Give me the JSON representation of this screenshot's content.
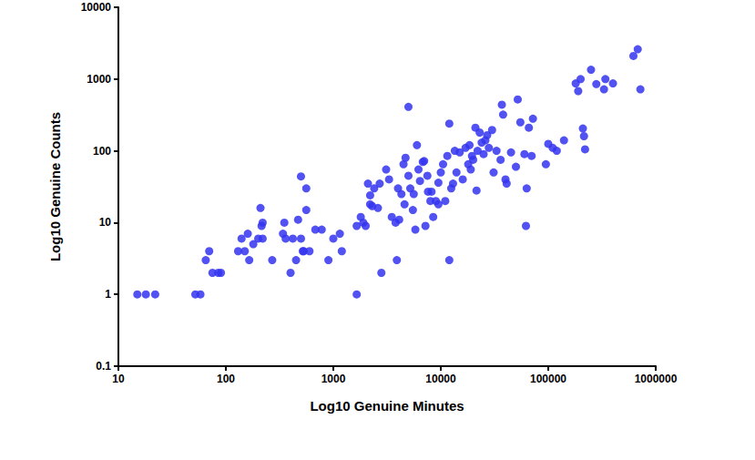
{
  "chart_data": {
    "type": "scatter",
    "x_label": "Log10 Genuine Minutes",
    "y_label": "Log10 Genuine Counts",
    "x": [
      15,
      18,
      22,
      52,
      58,
      65,
      70,
      75,
      85,
      90,
      130,
      140,
      150,
      160,
      165,
      180,
      200,
      210,
      215,
      220,
      220,
      270,
      340,
      350,
      360,
      400,
      420,
      450,
      470,
      500,
      500,
      520,
      530,
      560,
      560,
      600,
      680,
      780,
      900,
      1000,
      1150,
      1200,
      1650,
      1650,
      1800,
      1900,
      2000,
      2100,
      2200,
      2200,
      2300,
      2400,
      2600,
      2700,
      2800,
      3100,
      3300,
      3500,
      3800,
      3900,
      4000,
      4100,
      4300,
      4500,
      4600,
      4700,
      5000,
      5000,
      5200,
      5500,
      5600,
      5800,
      6000,
      6200,
      6400,
      6800,
      7000,
      7200,
      7500,
      7600,
      8000,
      8200,
      8500,
      9000,
      9500,
      9500,
      10000,
      10500,
      11000,
      11500,
      12000,
      12000,
      12500,
      13000,
      13500,
      14000,
      15000,
      16000,
      17000,
      18000,
      18500,
      19000,
      19500,
      20000,
      21000,
      21500,
      22000,
      23000,
      24000,
      25000,
      26000,
      27000,
      28000,
      30000,
      31000,
      33000,
      36000,
      37000,
      38000,
      40000,
      41000,
      45000,
      50000,
      52000,
      55000,
      60000,
      62000,
      63000,
      66000,
      70000,
      72000,
      95000,
      100000,
      110000,
      120000,
      140000,
      180000,
      190000,
      200000,
      210000,
      215000,
      220000,
      250000,
      280000,
      330000,
      340000,
      400000,
      620000,
      680000,
      720000
    ],
    "values": [
      1,
      1,
      1,
      1,
      1,
      3,
      4,
      2,
      2,
      2,
      4,
      6,
      4,
      7,
      3,
      5,
      6,
      16,
      9,
      10,
      6,
      3,
      7,
      10,
      6,
      2,
      6,
      3,
      11,
      44,
      6,
      4,
      4,
      30,
      15,
      4,
      8,
      8,
      3,
      6,
      7,
      4,
      1,
      9,
      12,
      10,
      9,
      35,
      18,
      24,
      17,
      30,
      16,
      35,
      2,
      55,
      40,
      12,
      10,
      3,
      30,
      11,
      25,
      65,
      18,
      80,
      410,
      45,
      30,
      15,
      25,
      8,
      120,
      55,
      38,
      70,
      72,
      9,
      45,
      27,
      20,
      27,
      12,
      20,
      18,
      36,
      50,
      65,
      20,
      85,
      240,
      3,
      30,
      35,
      100,
      50,
      95,
      40,
      110,
      65,
      120,
      55,
      85,
      75,
      210,
      28,
      100,
      180,
      130,
      90,
      140,
      165,
      110,
      195,
      50,
      100,
      75,
      440,
      320,
      40,
      35,
      95,
      60,
      520,
      250,
      90,
      9,
      30,
      210,
      85,
      280,
      65,
      125,
      110,
      100,
      140,
      870,
      680,
      1000,
      205,
      160,
      105,
      1350,
      850,
      720,
      1000,
      870,
      2100,
      2600,
      720
    ],
    "color": "#3434f0",
    "marker": "circle",
    "log": true,
    "grid": false,
    "xlim": [
      10,
      1000000
    ],
    "ylim": [
      0.1,
      10000
    ],
    "xticks": [
      10,
      100,
      1000,
      10000,
      100000,
      1000000
    ],
    "yticks": [
      0.1,
      1,
      10,
      100,
      1000,
      10000
    ]
  }
}
